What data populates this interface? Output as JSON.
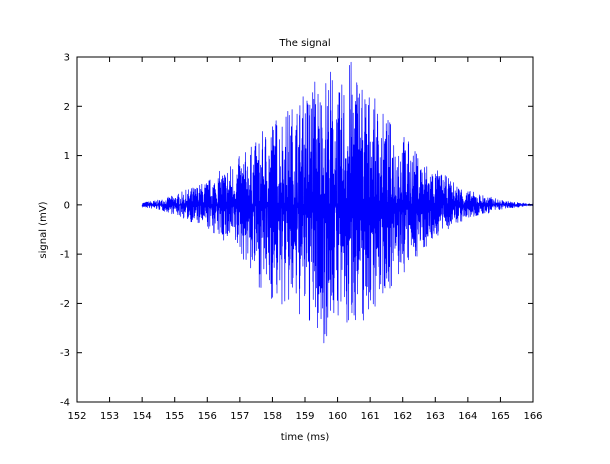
{
  "chart_data": {
    "type": "line",
    "title": "The signal",
    "xlabel": "time (ms)",
    "ylabel": "signal (mV)",
    "xlim": [
      152,
      166
    ],
    "ylim": [
      -4,
      3
    ],
    "grid": false,
    "x_ticks": [
      152,
      153,
      154,
      155,
      156,
      157,
      158,
      159,
      160,
      161,
      162,
      163,
      164,
      165,
      166
    ],
    "y_ticks": [
      -4,
      -3,
      -2,
      -1,
      0,
      1,
      2,
      3
    ],
    "series": [
      {
        "color": "#0000ff",
        "x": [
          154.0,
          154.5,
          155.0,
          155.5,
          156.0,
          156.5,
          157.0,
          157.5,
          158.0,
          158.5,
          159.0,
          159.3,
          159.5,
          159.8,
          160.0,
          160.3,
          160.5,
          160.7,
          161.0,
          161.5,
          162.0,
          162.5,
          163.0,
          163.5,
          164.0,
          164.5,
          165.0,
          165.5,
          166.0
        ],
        "envelope_max": [
          0.05,
          0.1,
          0.2,
          0.35,
          0.5,
          0.75,
          1.0,
          1.3,
          1.8,
          2.0,
          2.3,
          2.7,
          2.5,
          2.9,
          2.2,
          2.95,
          3.0,
          2.8,
          2.3,
          1.8,
          1.5,
          1.0,
          0.75,
          0.5,
          0.3,
          0.2,
          0.1,
          0.05,
          0.02
        ],
        "envelope_min": [
          -0.05,
          -0.1,
          -0.2,
          -0.35,
          -0.5,
          -0.75,
          -1.0,
          -1.6,
          -2.0,
          -2.2,
          -2.4,
          -2.6,
          -3.0,
          -2.5,
          -2.3,
          -2.8,
          -2.3,
          -2.6,
          -2.2,
          -1.8,
          -1.5,
          -1.0,
          -0.7,
          -0.45,
          -0.3,
          -0.2,
          -0.1,
          -0.05,
          -0.02
        ]
      }
    ]
  }
}
